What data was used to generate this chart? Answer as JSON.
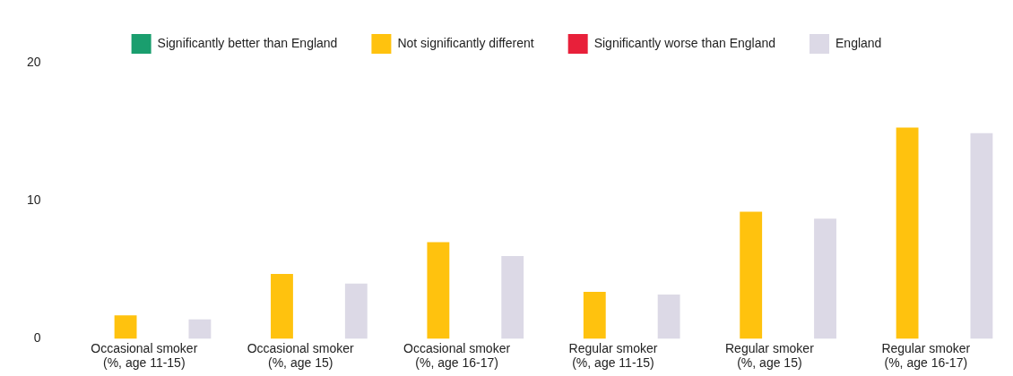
{
  "chart_data": {
    "type": "bar",
    "categories": [
      "Occasional smoker\n(%, age 11-15)",
      "Occasional smoker\n(%, age 15)",
      "Occasional smoker\n(%, age 16-17)",
      "Regular smoker\n(%, age 11-15)",
      "Regular smoker\n(%, age 15)",
      "Regular smoker\n(%, age 16-17)"
    ],
    "series": [
      {
        "name": "Significantly better than England",
        "color": "#1a9e6e",
        "values": [
          null,
          null,
          null,
          null,
          null,
          null
        ]
      },
      {
        "name": "Not significantly different",
        "color": "#ffc20e",
        "values": [
          1.7,
          4.7,
          7.0,
          3.4,
          9.2,
          15.3
        ]
      },
      {
        "name": "Significantly worse than England",
        "color": "#e8203a",
        "values": [
          null,
          null,
          null,
          null,
          null,
          null
        ]
      },
      {
        "name": "England",
        "color": "#dcd9e6",
        "values": [
          1.4,
          4.0,
          6.0,
          3.2,
          8.7,
          14.9
        ]
      }
    ],
    "ylim": [
      0,
      20
    ],
    "yticks": [
      0,
      10,
      20
    ],
    "grid": false,
    "legend": "top"
  }
}
